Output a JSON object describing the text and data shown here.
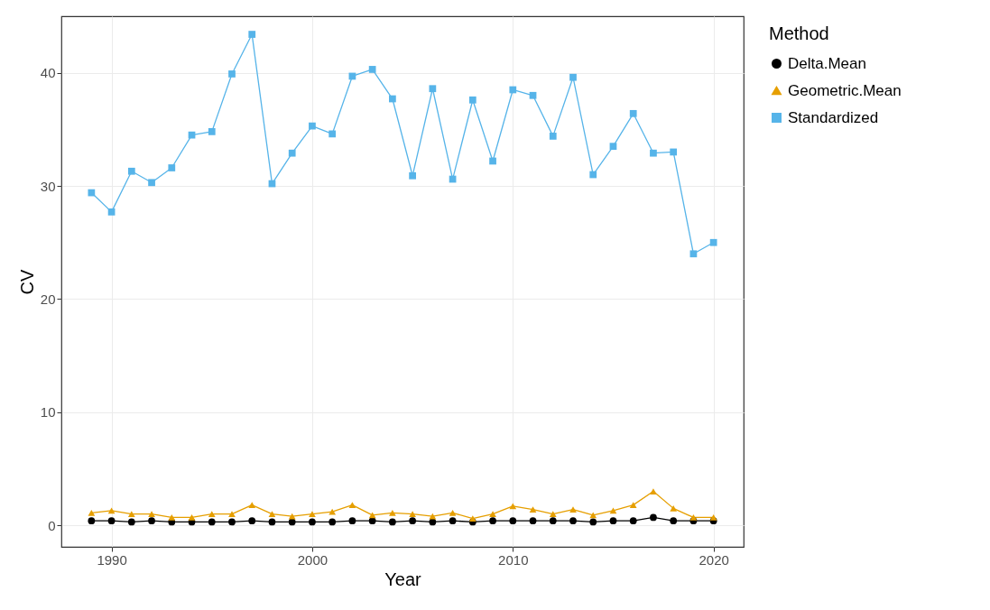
{
  "chart_data": {
    "type": "line",
    "xlabel": "Year",
    "ylabel": "CV",
    "legend_title": "Method",
    "legend": "right",
    "grid": true,
    "x": [
      1989,
      1990,
      1991,
      1992,
      1993,
      1994,
      1995,
      1996,
      1997,
      1998,
      1999,
      2000,
      2001,
      2002,
      2003,
      2004,
      2005,
      2006,
      2007,
      2008,
      2009,
      2010,
      2011,
      2012,
      2013,
      2014,
      2015,
      2016,
      2017,
      2018,
      2019,
      2020
    ],
    "xlim": [
      1987.5,
      2021.5
    ],
    "xticks": [
      1990,
      2000,
      2010,
      2020
    ],
    "ylim": [
      -1.9,
      45
    ],
    "yticks": [
      0,
      10,
      20,
      30,
      40
    ],
    "series": [
      {
        "name": "Delta.Mean",
        "color": "#000000",
        "marker": "circle",
        "values": [
          0.4,
          0.4,
          0.3,
          0.4,
          0.3,
          0.3,
          0.3,
          0.3,
          0.4,
          0.3,
          0.3,
          0.3,
          0.3,
          0.4,
          0.4,
          0.3,
          0.4,
          0.3,
          0.4,
          0.3,
          0.4,
          0.4,
          0.4,
          0.4,
          0.4,
          0.3,
          0.4,
          0.4,
          0.7,
          0.4,
          0.4,
          0.4
        ]
      },
      {
        "name": "Geometric.Mean",
        "color": "#e69f00",
        "marker": "triangle",
        "values": [
          1.1,
          1.3,
          1.0,
          1.0,
          0.7,
          0.7,
          1.0,
          1.0,
          1.8,
          1.0,
          0.8,
          1.0,
          1.2,
          1.8,
          0.9,
          1.1,
          1.0,
          0.8,
          1.1,
          0.6,
          1.0,
          1.7,
          1.4,
          1.0,
          1.4,
          0.9,
          1.3,
          1.8,
          3.0,
          1.5,
          0.7,
          0.7
        ]
      },
      {
        "name": "Standardized",
        "color": "#56b4e9",
        "marker": "square",
        "values": [
          29.4,
          27.7,
          31.3,
          30.3,
          31.6,
          34.5,
          34.8,
          39.9,
          43.4,
          30.2,
          32.9,
          35.3,
          34.6,
          39.7,
          40.3,
          37.7,
          30.9,
          38.6,
          30.6,
          37.6,
          32.2,
          38.5,
          38.0,
          34.4,
          39.6,
          31.0,
          33.5,
          36.4,
          32.9,
          33.0,
          24.0,
          25.0
        ]
      }
    ]
  }
}
